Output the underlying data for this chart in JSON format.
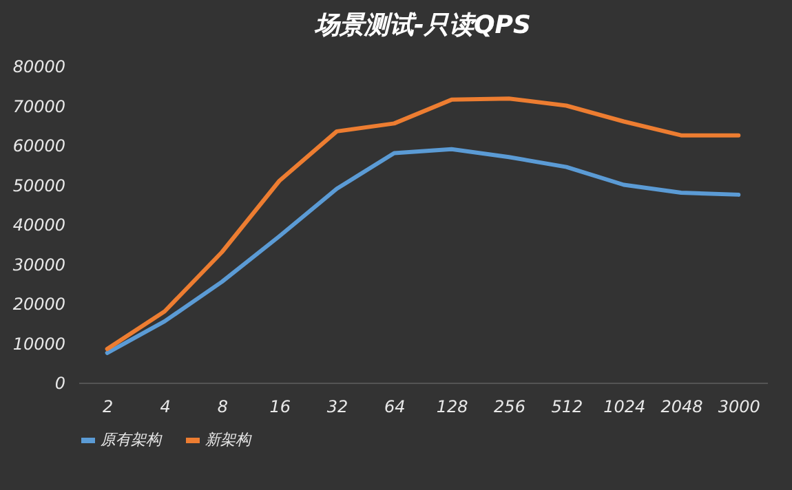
{
  "chart_data": {
    "type": "line",
    "title": "场景测试-只读QPS",
    "categories": [
      "2",
      "4",
      "8",
      "16",
      "32",
      "64",
      "128",
      "256",
      "512",
      "1024",
      "2048",
      "3000"
    ],
    "series": [
      {
        "name": "原有架构",
        "color": "#5b9bd5",
        "values": [
          7500,
          15500,
          25500,
          37000,
          49000,
          58000,
          59000,
          57000,
          54500,
          50000,
          48000,
          47500
        ]
      },
      {
        "name": "新架构",
        "color": "#ed7d31",
        "values": [
          8500,
          18000,
          33000,
          51000,
          63500,
          65500,
          71500,
          71800,
          70000,
          66000,
          62500,
          62500
        ]
      }
    ],
    "ylim": [
      0,
      80000
    ],
    "yticks": [
      0,
      10000,
      20000,
      30000,
      40000,
      50000,
      60000,
      70000,
      80000
    ],
    "grid": false,
    "legend": "bottom",
    "marker": "none",
    "line_style": "solid"
  }
}
